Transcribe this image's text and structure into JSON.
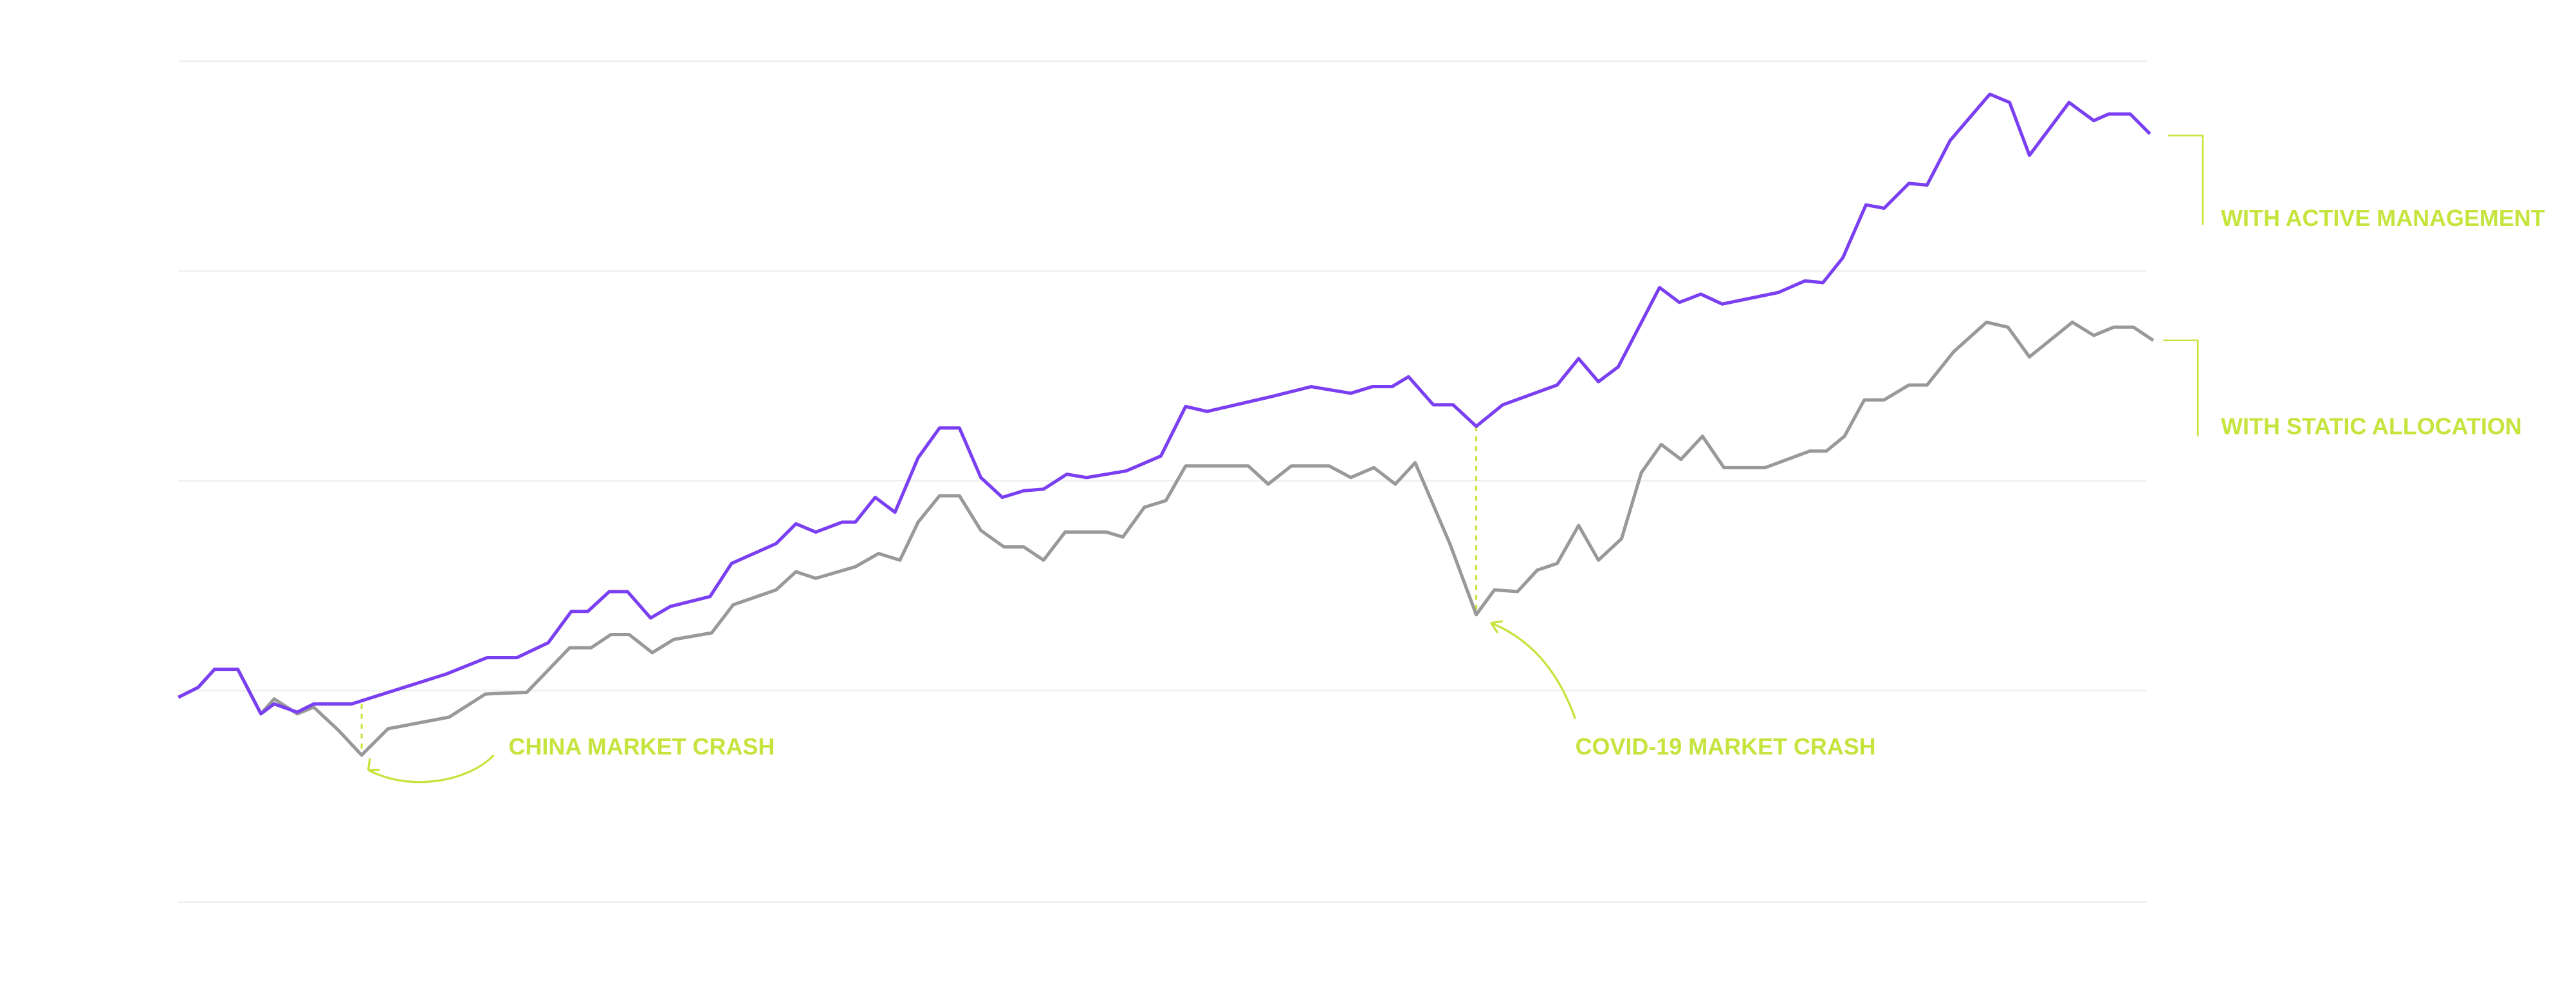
{
  "chart_data": {
    "type": "line",
    "xlim": [
      100,
      1310
    ],
    "ylim": [
      0,
      509
    ],
    "yticks": [
      0,
      128,
      255,
      382,
      509
    ],
    "grid": true,
    "series": [
      {
        "name": "WITH ACTIVE MANAGEMENT",
        "color": "#7b3ff2",
        "x": [
          108,
          120,
          130,
          144,
          158,
          166,
          180,
          190,
          213,
          270,
          295,
          313,
          332,
          346,
          356,
          369,
          380,
          394,
          406,
          430,
          443,
          470,
          482,
          494,
          510,
          518,
          530,
          542,
          556,
          569,
          581,
          594,
          607,
          620,
          632,
          646,
          658,
          682,
          703,
          718,
          731,
          770,
          794,
          818,
          831,
          843,
          853,
          868,
          880,
          894,
          910,
          943,
          956,
          968,
          980,
          1005,
          1017,
          1030,
          1043,
          1077,
          1093,
          1104,
          1116,
          1130,
          1141,
          1156,
          1167,
          1181,
          1205,
          1217,
          1229,
          1253,
          1268,
          1277,
          1290,
          1302
        ],
        "values": [
          124,
          130,
          141,
          141,
          114,
          120,
          115,
          120,
          120,
          138,
          148,
          148,
          157,
          176,
          176,
          188,
          188,
          172,
          179,
          185,
          205,
          217,
          229,
          224,
          230,
          230,
          245,
          236,
          269,
          287,
          287,
          257,
          245,
          249,
          250,
          259,
          257,
          261,
          270,
          300,
          297,
          306,
          312,
          308,
          312,
          312,
          318,
          301,
          301,
          288,
          301,
          313,
          329,
          315,
          324,
          372,
          363,
          368,
          362,
          369,
          376,
          375,
          390,
          422,
          420,
          435,
          434,
          461,
          489,
          484,
          452,
          484,
          473,
          477,
          477,
          465
        ]
      },
      {
        "name": "WITH STATIC ALLOCATION",
        "color": "#999999",
        "x": [
          108,
          120,
          130,
          144,
          158,
          166,
          180,
          190,
          205,
          219,
          235,
          272,
          294,
          319,
          345,
          358,
          370,
          381,
          395,
          408,
          431,
          444,
          470,
          482,
          494,
          518,
          532,
          545,
          556,
          569,
          581,
          594,
          608,
          620,
          632,
          645,
          670,
          680,
          693,
          706,
          718,
          756,
          768,
          782,
          805,
          818,
          832,
          845,
          857,
          878,
          894,
          905,
          919,
          931,
          943,
          956,
          968,
          982,
          994,
          1006,
          1018,
          1031,
          1044,
          1069,
          1096,
          1106,
          1117,
          1129,
          1141,
          1156,
          1167,
          1183,
          1203,
          1216,
          1229,
          1255,
          1268,
          1280,
          1292,
          1304
        ],
        "values": [
          124,
          130,
          141,
          141,
          114,
          123,
          114,
          118,
          104,
          89,
          105,
          112,
          126,
          127,
          154,
          154,
          162,
          162,
          151,
          159,
          163,
          180,
          189,
          200,
          196,
          203,
          211,
          207,
          230,
          246,
          246,
          225,
          215,
          215,
          207,
          224,
          224,
          221,
          239,
          243,
          264,
          264,
          253,
          264,
          264,
          257,
          263,
          253,
          266,
          217,
          174,
          189,
          188,
          201,
          205,
          228,
          207,
          220,
          260,
          277,
          268,
          282,
          263,
          263,
          273,
          273,
          282,
          304,
          304,
          313,
          313,
          333,
          351,
          348,
          330,
          351,
          343,
          348,
          348,
          340
        ]
      }
    ],
    "annotations": [
      {
        "text": "CHINA MARKET CRASH"
      },
      {
        "text": "COVID-19 MARKET CRASH"
      }
    ]
  }
}
